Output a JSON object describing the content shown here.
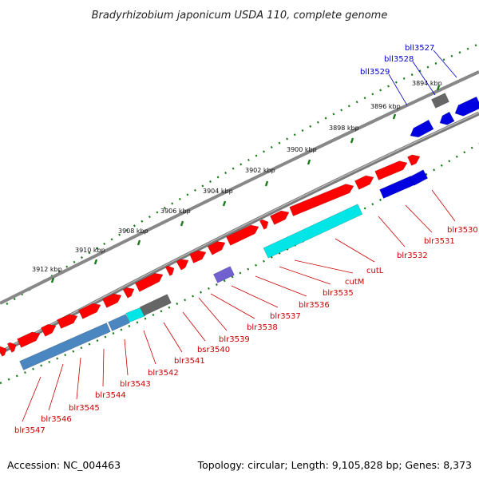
{
  "title": "Bradyrhizobium japonicum USDA 110, complete genome",
  "footer": {
    "accession": "Accession: NC_004463",
    "summary": "Topology: circular; Length: 9,105,828 bp; Genes: 8,373"
  },
  "colors": {
    "forward_gene": "#ff0000",
    "reverse_gene": "#0000e0",
    "forward_label": "#cc0000",
    "reverse_label": "#0000cc",
    "backbone": "#888888",
    "tick": "#1a7a1a",
    "cds_teal": "#00e5e5",
    "cds_steel": "#4a86c0",
    "cds_gray": "#666666",
    "cds_purple": "#7060d0"
  },
  "scale": {
    "unit": "kbp",
    "ticks": [
      "3894 kbp",
      "3896 kbp",
      "3898 kbp",
      "3900 kbp",
      "3902 kbp",
      "3904 kbp",
      "3906 kbp",
      "3908 kbp",
      "3910 kbp",
      "3912 kbp"
    ]
  },
  "genes": [
    {
      "name": "bll3527",
      "strand": "reverse"
    },
    {
      "name": "bll3528",
      "strand": "reverse"
    },
    {
      "name": "bll3529",
      "strand": "reverse"
    },
    {
      "name": "blr3530",
      "strand": "forward"
    },
    {
      "name": "blr3531",
      "strand": "forward"
    },
    {
      "name": "blr3532",
      "strand": "forward"
    },
    {
      "name": "cutL",
      "strand": "forward"
    },
    {
      "name": "cutM",
      "strand": "forward"
    },
    {
      "name": "blr3535",
      "strand": "forward"
    },
    {
      "name": "blr3536",
      "strand": "forward"
    },
    {
      "name": "blr3537",
      "strand": "forward"
    },
    {
      "name": "blr3538",
      "strand": "forward"
    },
    {
      "name": "blr3539",
      "strand": "forward"
    },
    {
      "name": "bsr3540",
      "strand": "forward"
    },
    {
      "name": "blr3541",
      "strand": "forward"
    },
    {
      "name": "blr3542",
      "strand": "forward"
    },
    {
      "name": "blr3543",
      "strand": "forward"
    },
    {
      "name": "blr3544",
      "strand": "forward"
    },
    {
      "name": "blr3545",
      "strand": "forward"
    },
    {
      "name": "blr3546",
      "strand": "forward"
    },
    {
      "name": "blr3547",
      "strand": "forward"
    }
  ]
}
